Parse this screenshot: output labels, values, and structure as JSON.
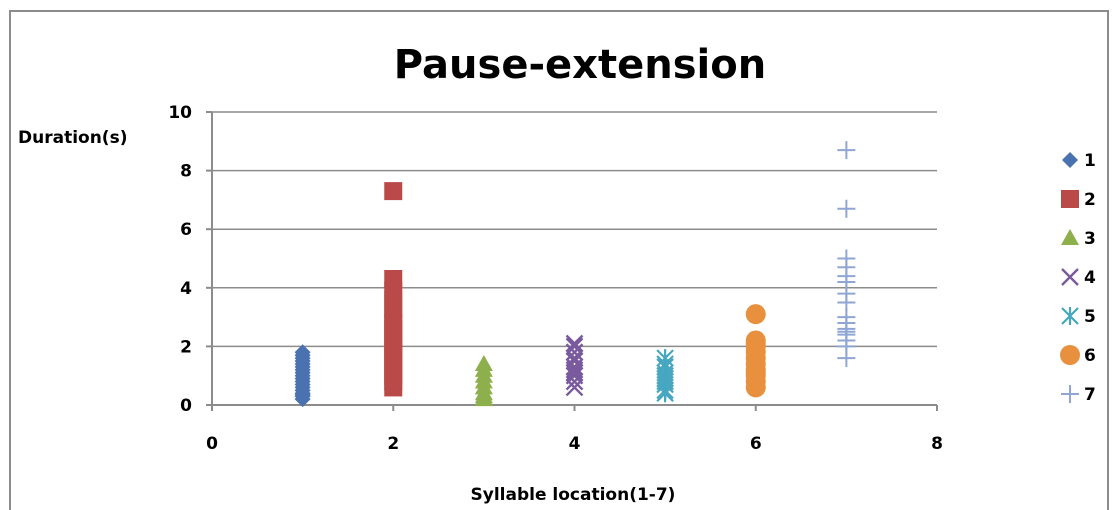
{
  "chart_data": {
    "type": "scatter",
    "title": "Pause-extension",
    "xlabel": "Syllable location(1-7)",
    "ylabel": "Duration(s)",
    "xlim": [
      0,
      8
    ],
    "ylim": [
      0,
      10
    ],
    "xticks": [
      0,
      2,
      4,
      6,
      8
    ],
    "yticks": [
      0,
      2,
      4,
      6,
      8,
      10
    ],
    "grid": "horizontal",
    "legend_position": "right",
    "series": [
      {
        "name": "1",
        "marker": "diamond",
        "color": "#4a72b0",
        "x": [
          1,
          1,
          1,
          1,
          1,
          1,
          1,
          1,
          1,
          1,
          1,
          1,
          1,
          1,
          1,
          1,
          1,
          1
        ],
        "y": [
          0.2,
          0.3,
          0.4,
          0.5,
          0.6,
          0.7,
          0.8,
          0.9,
          1.0,
          1.1,
          1.2,
          1.3,
          1.4,
          1.5,
          1.6,
          1.7,
          1.8,
          0.35
        ]
      },
      {
        "name": "2",
        "marker": "square",
        "color": "#b94a48",
        "x": [
          2,
          2,
          2,
          2,
          2,
          2,
          2,
          2,
          2,
          2,
          2,
          2,
          2,
          2,
          2,
          2,
          2,
          2
        ],
        "y": [
          0.6,
          0.8,
          1.0,
          1.2,
          1.4,
          1.6,
          1.8,
          2.0,
          2.2,
          2.4,
          2.6,
          2.8,
          3.0,
          3.3,
          3.6,
          3.9,
          4.3,
          7.3
        ]
      },
      {
        "name": "3",
        "marker": "triangle",
        "color": "#8eb04c",
        "x": [
          3,
          3,
          3,
          3,
          3,
          3,
          3,
          3
        ],
        "y": [
          0.2,
          0.3,
          0.4,
          0.6,
          0.8,
          1.0,
          1.2,
          1.4
        ]
      },
      {
        "name": "4",
        "marker": "x",
        "color": "#7a5a9e",
        "x": [
          4,
          4,
          4,
          4,
          4,
          4,
          4,
          4,
          4,
          4,
          4
        ],
        "y": [
          0.6,
          0.8,
          1.0,
          1.1,
          1.2,
          1.3,
          1.5,
          1.6,
          1.8,
          2.0,
          2.1
        ]
      },
      {
        "name": "5",
        "marker": "asterisk",
        "color": "#46a7c0",
        "x": [
          5,
          5,
          5,
          5,
          5,
          5,
          5,
          5,
          5,
          5
        ],
        "y": [
          0.4,
          0.5,
          0.7,
          0.8,
          0.9,
          1.0,
          1.1,
          1.3,
          1.4,
          1.6
        ]
      },
      {
        "name": "6",
        "marker": "circle",
        "color": "#e8903e",
        "x": [
          6,
          6,
          6,
          6,
          6,
          6,
          6,
          6,
          6,
          6,
          6,
          6
        ],
        "y": [
          0.6,
          0.8,
          1.0,
          1.1,
          1.2,
          1.4,
          1.6,
          1.8,
          2.0,
          2.1,
          2.2,
          3.1
        ]
      },
      {
        "name": "7",
        "marker": "plus",
        "color": "#8fa6d4",
        "x": [
          7,
          7,
          7,
          7,
          7,
          7,
          7,
          7,
          7,
          7,
          7,
          7,
          7,
          7,
          7,
          7
        ],
        "y": [
          1.6,
          2.0,
          2.2,
          2.4,
          2.6,
          2.8,
          3.0,
          3.5,
          3.8,
          4.2,
          4.4,
          4.7,
          5.0,
          6.7,
          8.7,
          2.5
        ]
      }
    ]
  }
}
